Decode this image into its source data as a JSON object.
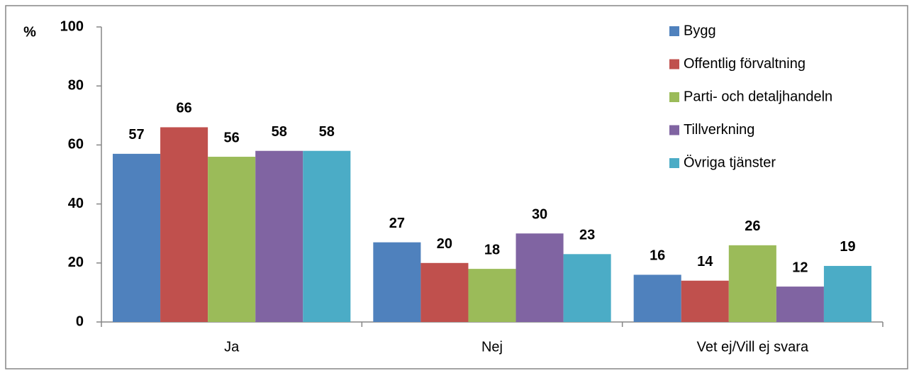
{
  "chart_data": {
    "type": "bar",
    "y_label": "%",
    "categories": [
      "Ja",
      "Nej",
      "Vet ej/Vill ej svara"
    ],
    "series": [
      {
        "name": "Bygg",
        "color": "#4f81bd",
        "values": [
          57,
          27,
          16
        ]
      },
      {
        "name": "Offentlig förvaltning",
        "color": "#c0504d",
        "values": [
          66,
          20,
          14
        ]
      },
      {
        "name": "Parti- och detaljhandeln",
        "color": "#9bbb59",
        "values": [
          56,
          18,
          26
        ]
      },
      {
        "name": "Tillverkning",
        "color": "#8064a2",
        "values": [
          58,
          30,
          12
        ]
      },
      {
        "name": "Övriga tjänster",
        "color": "#4bacc6",
        "values": [
          58,
          23,
          19
        ]
      }
    ],
    "ylim": [
      0,
      100
    ],
    "yticks": [
      0,
      20,
      40,
      60,
      80,
      100
    ],
    "grid": false,
    "legend": "top-right"
  }
}
